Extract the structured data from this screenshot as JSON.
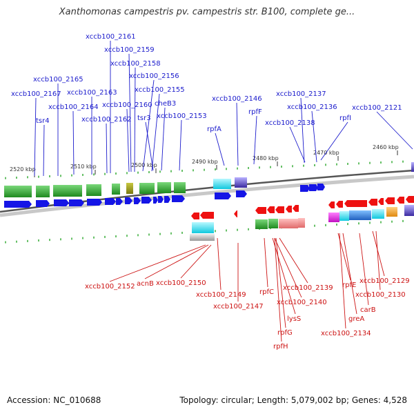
{
  "header": {
    "title": "Xanthomonas campestris pv. campestris str. B100, complete ge..."
  },
  "footer": {
    "accession": "Accession: NC_010688",
    "stats": "Topology: circular; Length: 5,079,002 bp; Genes: 4,528"
  },
  "colors": {
    "top_labels": "#1a1acc",
    "bottom_labels": "#cc1111",
    "forward": "#1515e6",
    "reverse": "#ee1111",
    "tick": "#33aa33"
  },
  "scale_ticks": [
    {
      "label": "2520 kbp"
    },
    {
      "label": "2510 kbp"
    },
    {
      "label": "2500 kbp"
    },
    {
      "label": "2490 kbp"
    },
    {
      "label": "2480 kbp"
    },
    {
      "label": "2470 kbp"
    },
    {
      "label": "2460 kbp"
    }
  ],
  "top_genes": [
    {
      "label": "xccb100_2167"
    },
    {
      "label": "tsr4"
    },
    {
      "label": "xccb100_2165"
    },
    {
      "label": "xccb100_2164"
    },
    {
      "label": "xccb100_2163"
    },
    {
      "label": "xccb100_2162"
    },
    {
      "label": "xccb100_2161"
    },
    {
      "label": "xccb100_2159"
    },
    {
      "label": "xccb100_2158"
    },
    {
      "label": "xccb100_2160"
    },
    {
      "label": "xccb100_2156"
    },
    {
      "label": "xccb100_2155"
    },
    {
      "label": "cheB3"
    },
    {
      "label": "tsr3"
    },
    {
      "label": "xccb100_2153"
    },
    {
      "label": "rpfA"
    },
    {
      "label": "xccb100_2146"
    },
    {
      "label": "rpfF"
    },
    {
      "label": "xccb100_2137"
    },
    {
      "label": "xccb100_2136"
    },
    {
      "label": "xccb100_2138"
    },
    {
      "label": "rpfI"
    },
    {
      "label": "xccb100_2121"
    }
  ],
  "bottom_genes": [
    {
      "label": "xccb100_2152"
    },
    {
      "label": "acnB"
    },
    {
      "label": "xccb100_2150"
    },
    {
      "label": "xccb100_2149"
    },
    {
      "label": "xccb100_2147"
    },
    {
      "label": "rpfC"
    },
    {
      "label": "xccb100_2139"
    },
    {
      "label": "xccb100_2140"
    },
    {
      "label": "lysS"
    },
    {
      "label": "rpfG"
    },
    {
      "label": "rpfH"
    },
    {
      "label": "rpfE"
    },
    {
      "label": "greA"
    },
    {
      "label": "xccb100_2134"
    },
    {
      "label": "carB"
    },
    {
      "label": "xccb100_2129"
    },
    {
      "label": "xccb100_2130"
    }
  ]
}
